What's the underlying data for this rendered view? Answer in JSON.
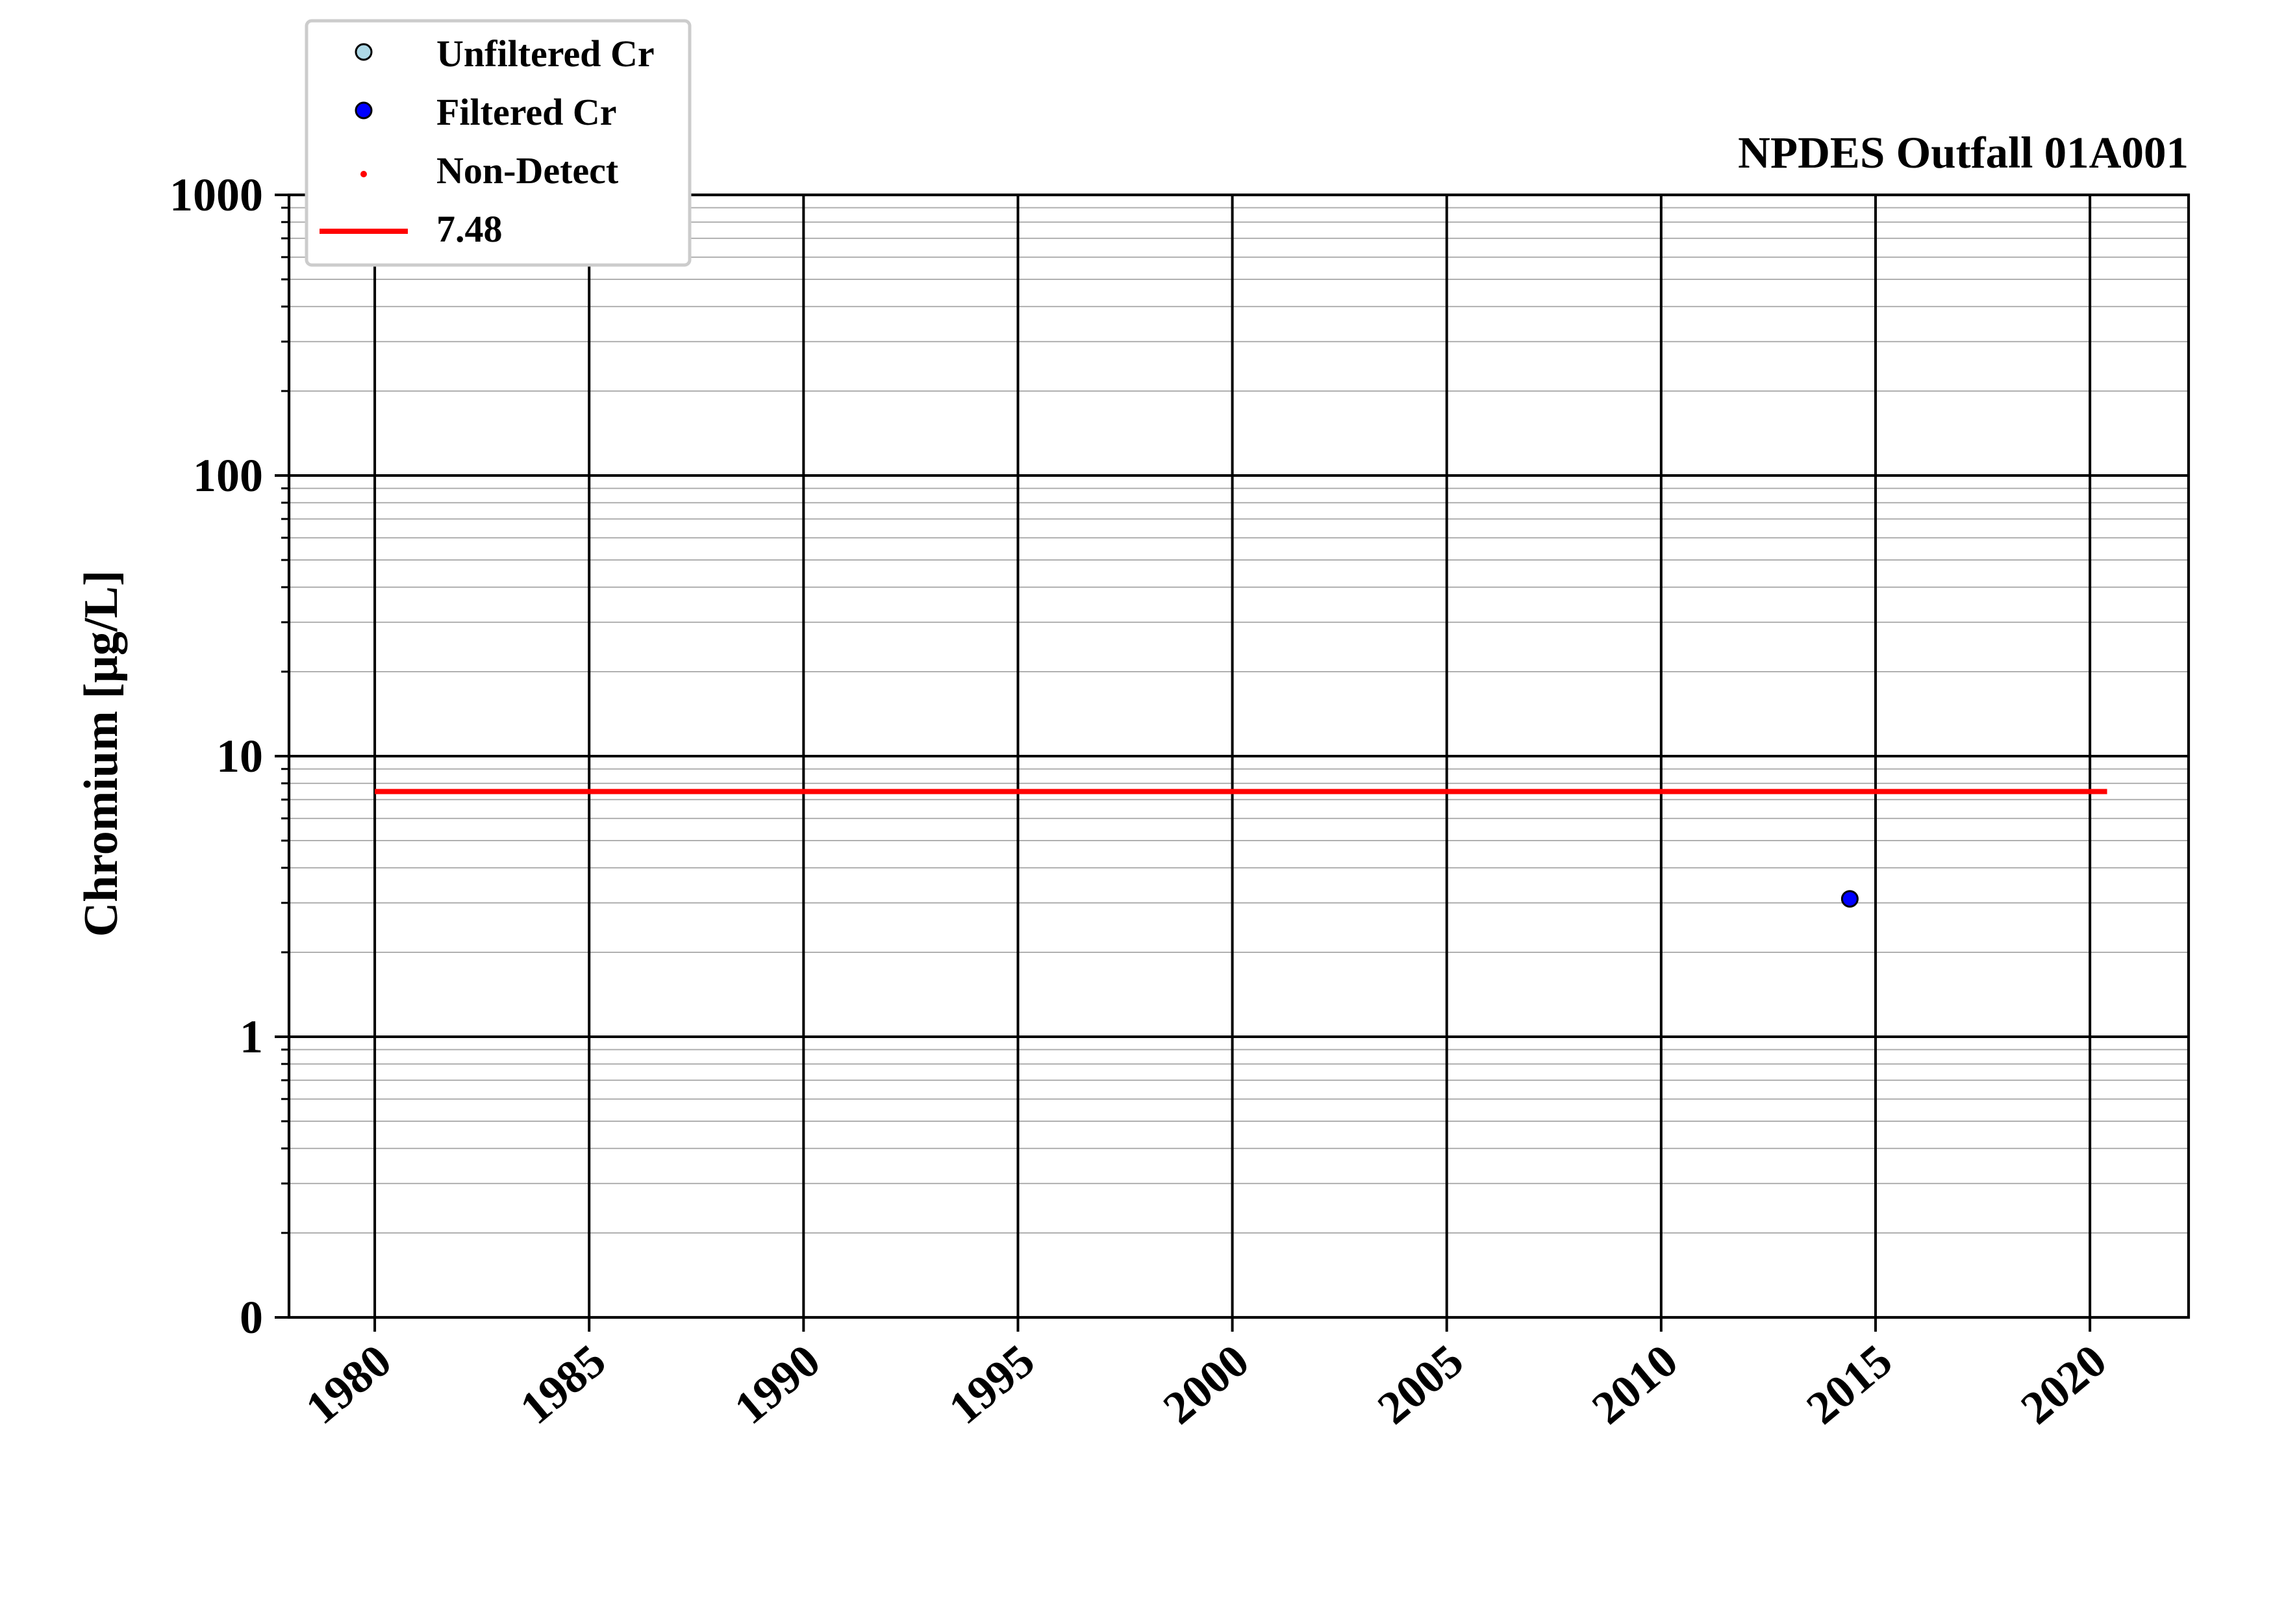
{
  "chart_data": {
    "type": "scatter",
    "title": "NPDES Outfall 01A001",
    "xlabel": "",
    "ylabel": "Chromium [μg/L]",
    "xlim": [
      1978,
      2022.3
    ],
    "ylim": [
      0.1,
      1000
    ],
    "y_scale": "log",
    "y_tick_values": [
      0.1,
      1,
      10,
      100,
      1000
    ],
    "y_tick_labels": [
      "0",
      "1",
      "10",
      "100",
      "1000"
    ],
    "x_ticks": [
      1980,
      1985,
      1990,
      1995,
      2000,
      2005,
      2010,
      2015,
      2020
    ],
    "x_tick_labels": [
      "1980",
      "1985",
      "1990",
      "1995",
      "2000",
      "2005",
      "2010",
      "2015",
      "2020"
    ],
    "grid": true,
    "legend_position": "top-left, above plot",
    "legend": [
      {
        "label": "Unfiltered Cr",
        "marker": "circle",
        "color": "#add8e6"
      },
      {
        "label": "Filtered Cr",
        "marker": "circle",
        "color": "#0000ff"
      },
      {
        "label": "Non-Detect",
        "marker": "dot",
        "color": "#ff0000"
      },
      {
        "label": "7.48",
        "marker": "line",
        "color": "#ff0000"
      }
    ],
    "series": [
      {
        "name": "Unfiltered Cr",
        "x": [],
        "y": []
      },
      {
        "name": "Filtered Cr",
        "x": [
          2014.4
        ],
        "y": [
          3.1
        ]
      },
      {
        "name": "Non-Detect",
        "x": [],
        "y": []
      }
    ],
    "reference_line": {
      "name": "7.48",
      "value": 7.48,
      "x_range": [
        1980,
        2020.4
      ],
      "color": "#ff0000"
    }
  }
}
